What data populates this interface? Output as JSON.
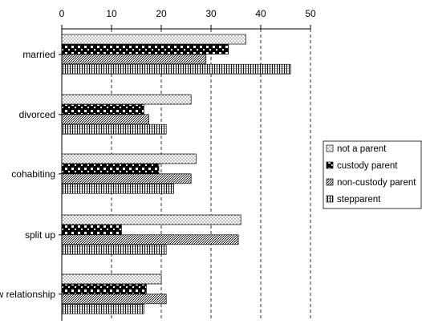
{
  "chart_data": {
    "type": "bar",
    "orientation": "horizontal",
    "title": "",
    "xlabel": "",
    "ylabel": "",
    "xlim": [
      0,
      50
    ],
    "xticks": [
      0,
      10,
      20,
      30,
      40,
      50
    ],
    "x_axis_position": "top",
    "grid": "vertical dashed",
    "legend_position": "right",
    "categories": [
      "married",
      "divorced",
      "cohabiting",
      "split up",
      "new relationship"
    ],
    "series": [
      {
        "name": "not a parent",
        "pattern": "dots",
        "values": [
          37,
          26,
          27,
          36,
          20
        ]
      },
      {
        "name": "custody parent",
        "pattern": "checker",
        "values": [
          33.5,
          16.5,
          19.5,
          12,
          17
        ]
      },
      {
        "name": "non-custody parent",
        "pattern": "diagonal",
        "values": [
          29,
          17.5,
          26,
          35.5,
          21
        ]
      },
      {
        "name": "stepparent",
        "pattern": "vertical",
        "values": [
          46,
          21,
          22.5,
          21,
          16.5
        ]
      }
    ]
  }
}
